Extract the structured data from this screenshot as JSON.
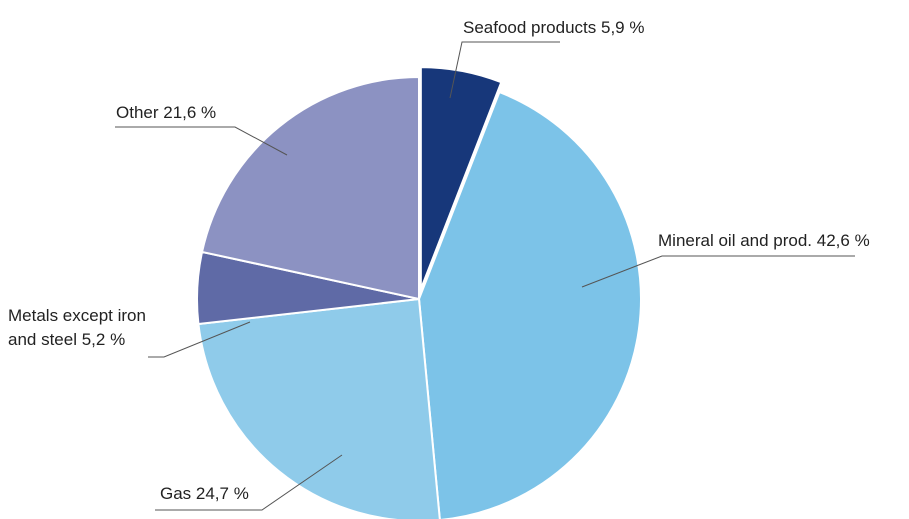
{
  "chart_data": {
    "type": "pie",
    "title": "",
    "unit": "%",
    "slices": [
      {
        "key": "seafood",
        "label_lines": [
          "Seafood products 5,9 %"
        ],
        "value": 5.9,
        "color": "#17377a",
        "exploded": true
      },
      {
        "key": "mineral-oil",
        "label_lines": [
          "Mineral oil and prod. 42,6 %"
        ],
        "value": 42.6,
        "color": "#7cc3e8"
      },
      {
        "key": "gas",
        "label_lines": [
          "Gas 24,7 %"
        ],
        "value": 24.7,
        "color": "#8fcbea"
      },
      {
        "key": "metals",
        "label_lines": [
          "Metals except iron",
          "and steel 5,2 %"
        ],
        "value": 5.2,
        "color": "#5f6aa6"
      },
      {
        "key": "other",
        "label_lines": [
          "Other 21,6 %"
        ],
        "value": 21.6,
        "color": "#8c92c2"
      }
    ],
    "start_angle_deg": 0,
    "direction": "clockwise",
    "legend": "none"
  }
}
